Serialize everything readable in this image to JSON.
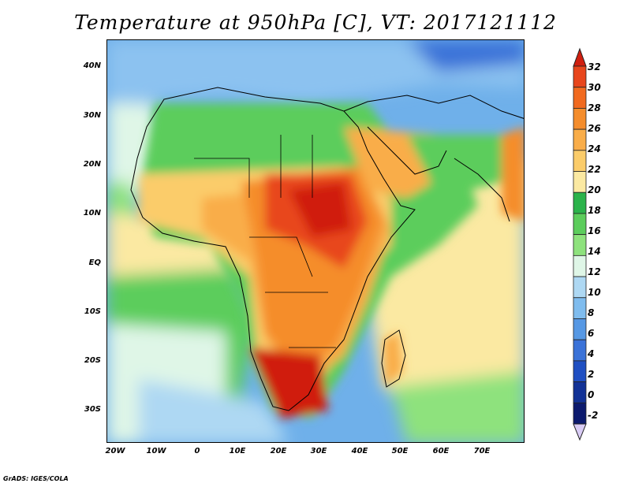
{
  "title": "Temperature at 950hPa [C], VT: 2017121112",
  "credit": "GrADS: IGES/COLA",
  "map": {
    "lat_labels": [
      "40N",
      "30N",
      "20N",
      "10N",
      "EQ",
      "10S",
      "20S",
      "30S"
    ],
    "lon_labels": [
      "20W",
      "10W",
      "0",
      "10E",
      "20E",
      "30E",
      "40E",
      "50E",
      "60E",
      "70E"
    ]
  },
  "colorbar": {
    "labels": [
      "32",
      "30",
      "28",
      "26",
      "24",
      "22",
      "20",
      "18",
      "16",
      "14",
      "12",
      "10",
      "8",
      "6",
      "4",
      "2",
      "0",
      "-2"
    ],
    "colors": [
      "#d01f0f",
      "#e8461c",
      "#f16a1f",
      "#f58d2c",
      "#f9ad49",
      "#fbcc6a",
      "#fbe9a2",
      "#2bb34b",
      "#5ccd5c",
      "#8ee27d",
      "#dff6e7",
      "#aed8f3",
      "#7fbcee",
      "#5698e4",
      "#3a72d8",
      "#1f4fc2",
      "#123296",
      "#0c1a6e",
      "#d9ccf5"
    ]
  }
}
